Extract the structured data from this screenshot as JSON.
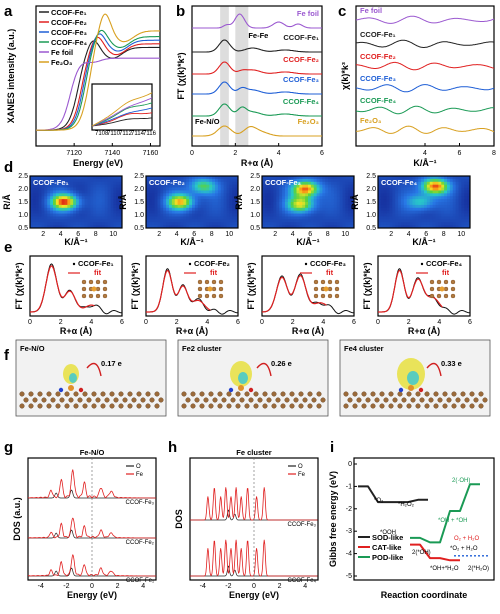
{
  "panel_labels": [
    "a",
    "b",
    "c",
    "d",
    "e",
    "f",
    "g",
    "h",
    "i"
  ],
  "colors": {
    "Fe1": "#222222",
    "Fe2": "#e02020",
    "Fe3": "#1f5fd6",
    "Fe4": "#1a9a55",
    "foil": "#9b59d0",
    "Fe2O3": "#d8a020",
    "SOD": "#222222",
    "CAT": "#e02020",
    "POD": "#1a9a55",
    "dos_O": "#222222",
    "dos_Fe": "#e02020"
  },
  "chart_data": [
    {
      "id": "a",
      "type": "line",
      "xlabel": "Energy (eV)",
      "ylabel": "XANES intensity (a.u.)",
      "xlim": [
        7100,
        7165
      ],
      "xticks": [
        7120,
        7140,
        7160
      ],
      "legend": [
        "CCOF-Fe1",
        "CCOF-Fe2",
        "CCOF-Fe3",
        "CCOF-Fe4",
        "Fe foil",
        "Fe2O3"
      ],
      "legend_text": [
        "CCOF-Fe₁",
        "CCOF-Fe₂",
        "CCOF-Fe₃",
        "CCOF-Fe₄",
        "Fe foil",
        "Fe₂O₃"
      ],
      "inset_xticks": [
        "7108",
        "7110",
        "7112",
        "7114",
        "7116"
      ],
      "edge": [
        7122,
        7124,
        7125,
        7126,
        7118,
        7128
      ],
      "peak": [
        1.15,
        1.2,
        1.25,
        1.3,
        1.05,
        1.38
      ]
    },
    {
      "id": "b",
      "type": "line",
      "xlabel": "R+α (Å)",
      "ylabel": "FT (χ(k)*k³)",
      "xlim": [
        0,
        6
      ],
      "xticks": [
        0,
        2,
        4,
        6
      ],
      "series": [
        "Fe foil",
        "CCOF-Fe1",
        "CCOF-Fe2",
        "CCOF-Fe3",
        "CCOF-Fe4",
        "Fe2O3"
      ],
      "series_text": [
        "Fe foil",
        "CCOF-Fe₁",
        "CCOF-Fe₂",
        "CCOF-Fe₃",
        "CCOF-Fe₄",
        "Fe₂O₃"
      ],
      "annotations": [
        "Fe-Fe",
        "Fe-N/O"
      ],
      "peak_r": [
        2.2,
        1.5,
        1.5,
        1.5,
        1.5,
        1.5
      ],
      "shaded": [
        [
          1.3,
          1.7
        ],
        [
          2.0,
          2.6
        ]
      ]
    },
    {
      "id": "c",
      "type": "line",
      "xlabel": "K/Å⁻¹",
      "ylabel": "χ(k)*k³",
      "xlim": [
        0,
        8
      ],
      "xticks": [
        4,
        6,
        8
      ],
      "series": [
        "Fe foil",
        "CCOF-Fe1",
        "CCOF-Fe2",
        "CCOF-Fe3",
        "CCOF-Fe4",
        "Fe2O3"
      ],
      "series_text": [
        "Fe foil",
        "CCOF-Fe₁",
        "CCOF-Fe₂",
        "CCOF-Fe₃",
        "CCOF-Fe₄",
        "Fe₂O₃"
      ]
    },
    {
      "id": "d",
      "type": "heatmap",
      "xlabel": "K/Å⁻¹",
      "ylabel": "R/Å",
      "xticks": [
        2,
        4,
        6,
        8,
        10
      ],
      "yticks": [
        "0.5",
        "1.0",
        "1.5",
        "2.0",
        "2.5"
      ],
      "maps": [
        {
          "name": "CCOF-Fe1",
          "text": "CCOF-Fe₁",
          "hot": [
            [
              4.5,
              1.5,
              1.0
            ]
          ]
        },
        {
          "name": "CCOF-Fe2",
          "text": "CCOF-Fe₂",
          "hot": [
            [
              4.5,
              1.5,
              0.85
            ],
            [
              7.0,
              2.1,
              0.6
            ]
          ]
        },
        {
          "name": "CCOF-Fe3",
          "text": "CCOF-Fe₃",
          "hot": [
            [
              5.5,
              2.0,
              1.0
            ],
            [
              5.0,
              1.4,
              0.8
            ]
          ]
        },
        {
          "name": "CCOF-Fe4",
          "text": "CCOF-Fe₄",
          "hot": [
            [
              7.0,
              2.1,
              1.0
            ],
            [
              5.5,
              1.5,
              0.5
            ]
          ]
        }
      ]
    },
    {
      "id": "e",
      "type": "line",
      "xlabel": "R+α (Å)",
      "ylabel": "FT (χ(k)*k³)",
      "xticks": [
        0,
        2,
        4,
        6
      ],
      "fits": [
        {
          "name": "CCOF-Fe1",
          "text": "CCOF-Fe₁",
          "legend": [
            "CCOF-Fe₁",
            "fit"
          ]
        },
        {
          "name": "CCOF-Fe2",
          "text": "CCOF-Fe₂",
          "legend": [
            "CCOF-Fe₂",
            "fit"
          ]
        },
        {
          "name": "CCOF-Fe3",
          "text": "CCOF-Fe₃",
          "legend": [
            "CCOF-Fe₃",
            "fit"
          ]
        },
        {
          "name": "CCOF-Fe4",
          "text": "CCOF-Fe₄",
          "legend": [
            "CCOF-Fe₄",
            "fit"
          ]
        }
      ]
    },
    {
      "id": "f",
      "type": "table",
      "cells": [
        {
          "title": "Fe-N/O",
          "charge": "0.17 e"
        },
        {
          "title": "Fe2 cluster",
          "charge": "0.26 e"
        },
        {
          "title": "Fe4 cluster",
          "charge": "0.33 e"
        }
      ]
    },
    {
      "id": "g",
      "type": "line",
      "title": "Fe-N/O",
      "xlabel": "Energy (eV)",
      "ylabel": "DOS (a.u.)",
      "xticks": [
        -4,
        -2,
        0,
        2,
        4
      ],
      "legend": [
        "O",
        "Fe"
      ],
      "series_labels": [
        "CCOF-Fe₃",
        "CCOF-Fe₂",
        "CCOF-Fe₁"
      ]
    },
    {
      "id": "h",
      "type": "line",
      "title": "Fe cluster",
      "xlabel": "Energy (eV)",
      "ylabel": "DOS",
      "xticks": [
        -4,
        -2,
        0,
        2,
        4
      ],
      "legend": [
        "O",
        "Fe"
      ],
      "series_labels": [
        "CCOF-Fe₃",
        "CCOF-Fe₄"
      ]
    },
    {
      "id": "i",
      "type": "line",
      "xlabel": "Reaction coordinate",
      "ylabel": "Gibbs free energy (eV)",
      "ylim": [
        -5,
        0
      ],
      "yticks": [
        0,
        -1,
        -2,
        -3,
        -4,
        -5
      ],
      "legend": [
        "SOD-like",
        "CAT-like",
        "POD-like"
      ],
      "SOD": [
        -1.0,
        -1.7,
        -1.7,
        -1.6
      ],
      "CAT": [
        -3.6,
        -4.2,
        -4.3
      ],
      "POD": [
        -3.3,
        -3.5,
        -2.1,
        -0.9
      ],
      "annotations": [
        "*O₂",
        "*H₂O₂",
        "*OOH",
        "*OH + *OH",
        "2(*OH)",
        "*O₂ + H₂O",
        "O₂ + H₂O",
        "2(·OH)",
        "*OH+*H₂O",
        "2(*H₂O)"
      ]
    }
  ]
}
